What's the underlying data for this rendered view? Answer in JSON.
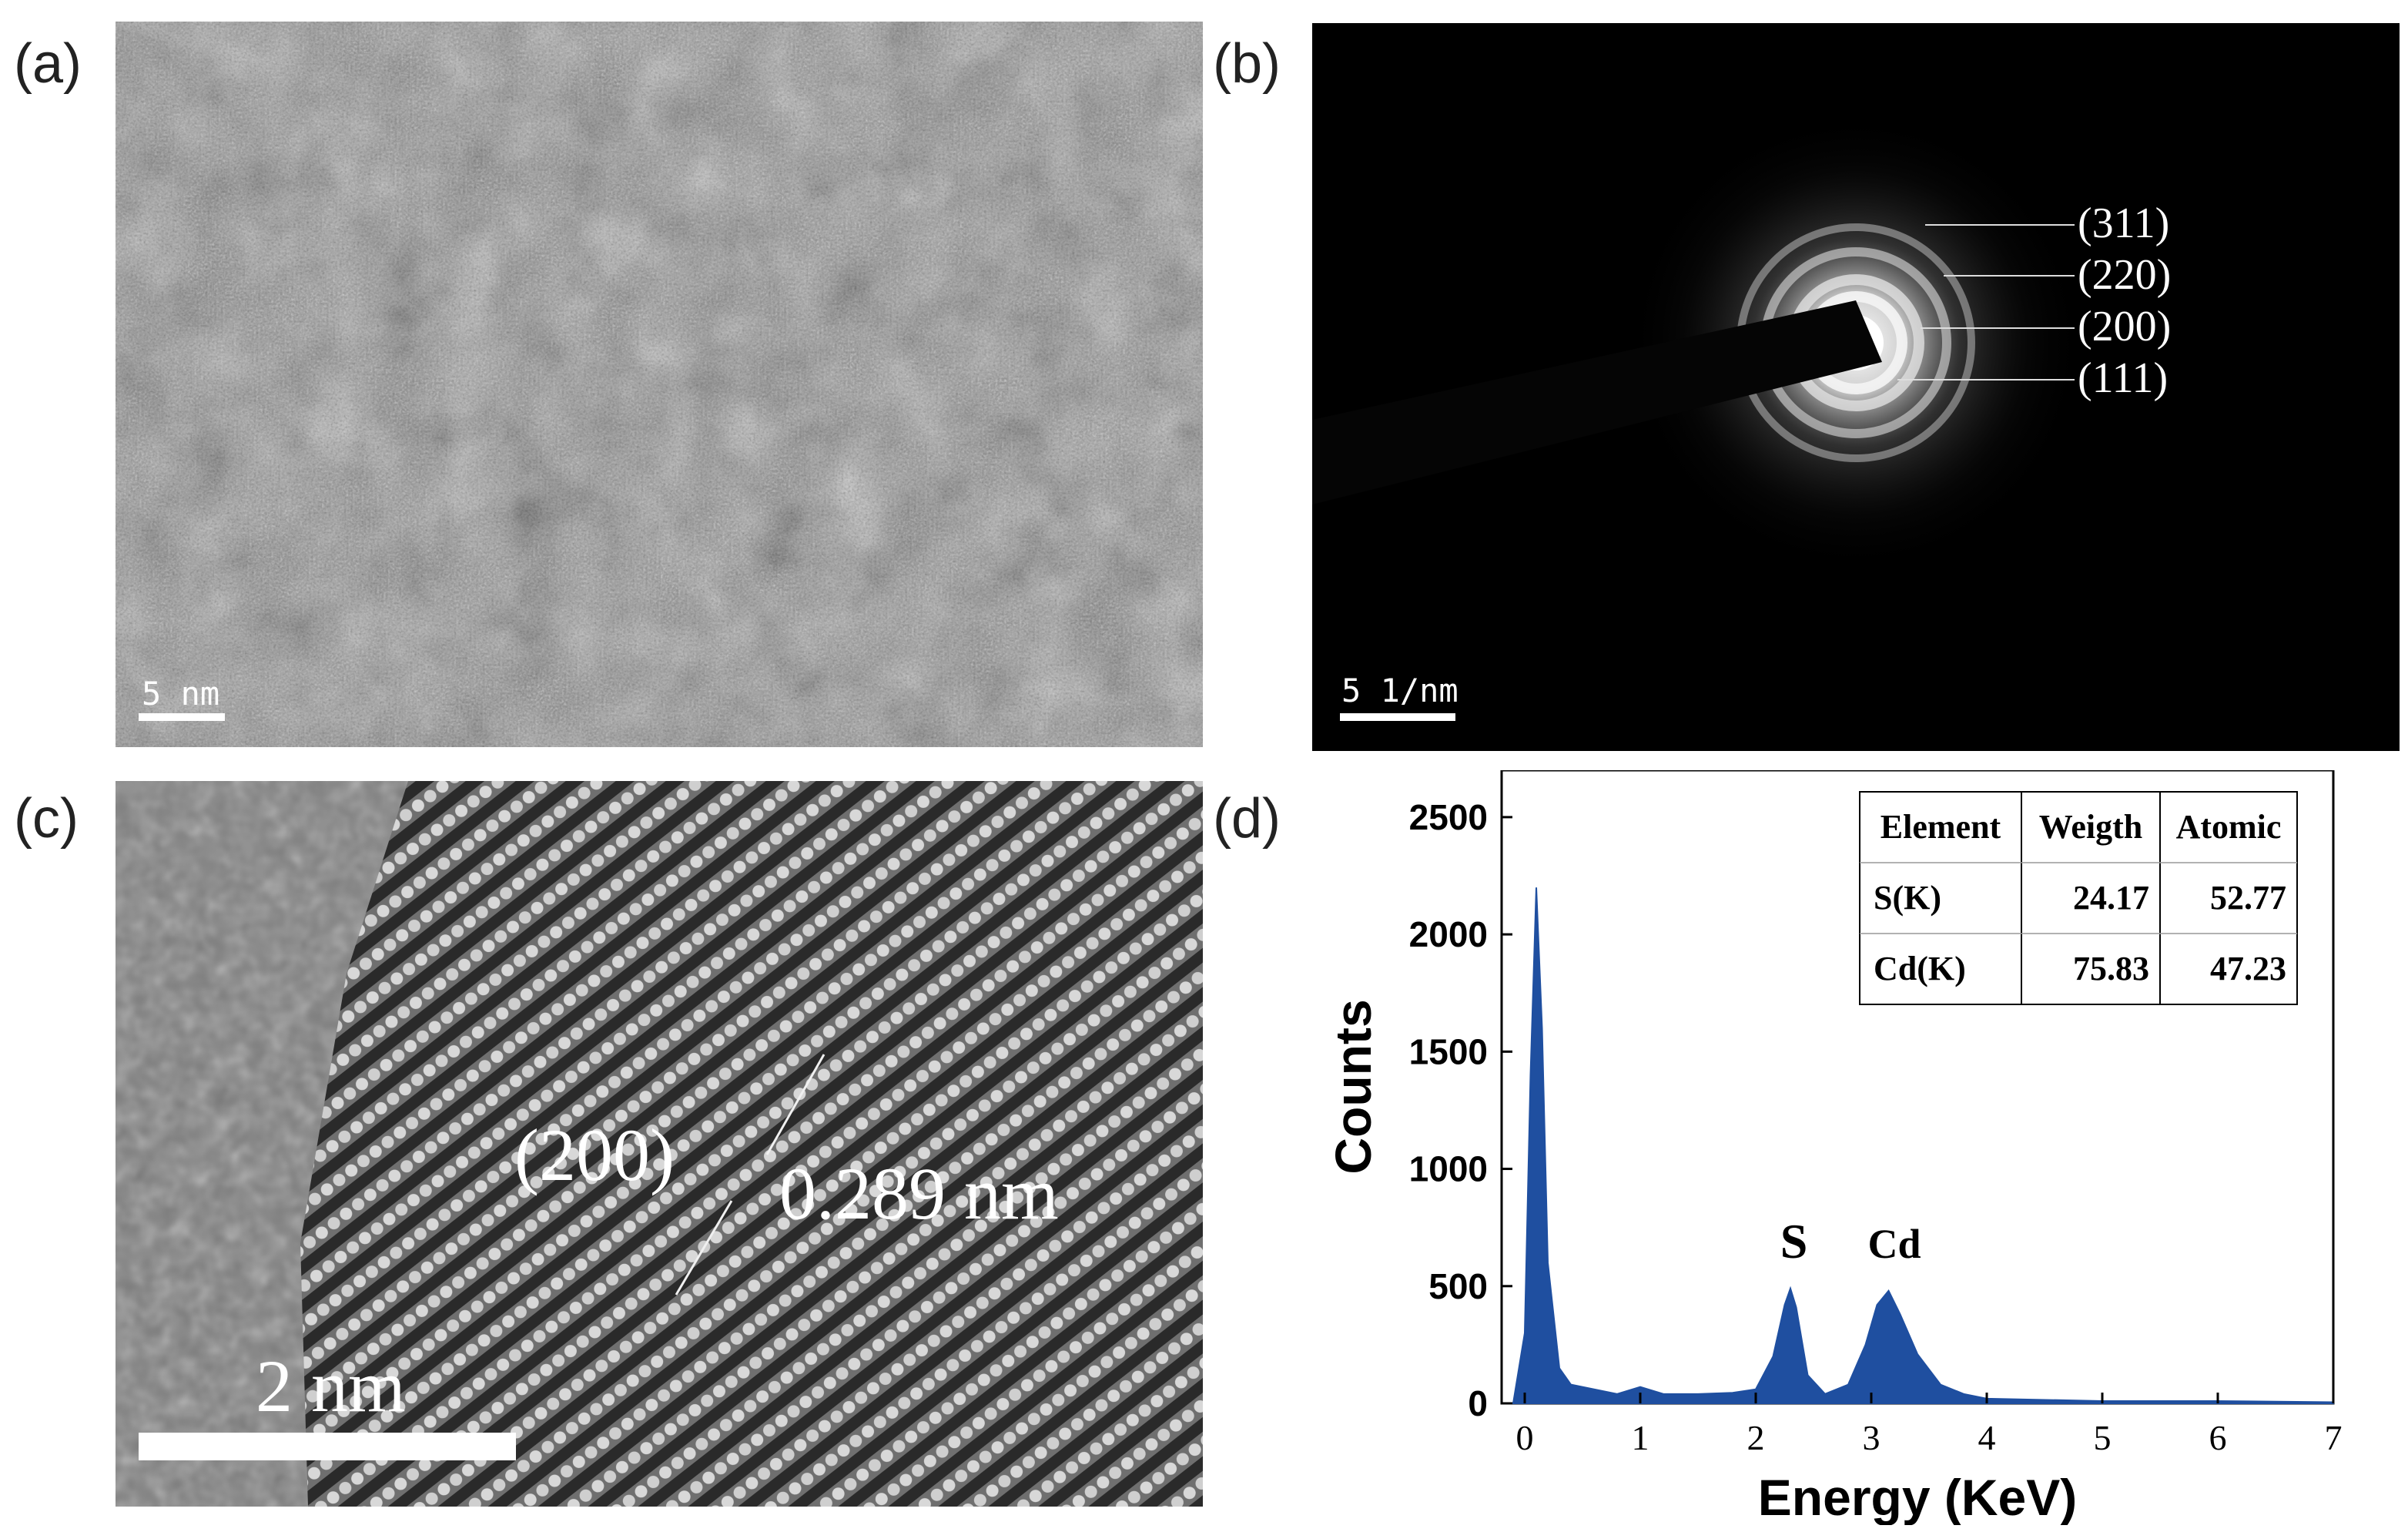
{
  "panels": {
    "a": {
      "letter": "(a)",
      "scale_bar": "5 nm"
    },
    "b": {
      "letter": "(b)",
      "scale_bar": "5 1/nm",
      "ring_labels": [
        "(311)",
        "(220)",
        "(200)",
        "(111)"
      ]
    },
    "c": {
      "letter": "(c)",
      "plane_label": "(200)",
      "spacing_label": "0.289 nm",
      "scale_bar": "2 nm"
    },
    "d": {
      "letter": "(d)"
    }
  },
  "chart_data": {
    "type": "area",
    "xlabel": "Energy (KeV)",
    "ylabel": "Counts",
    "xlim": [
      -0.2,
      7
    ],
    "ylim": [
      0,
      2700
    ],
    "xticks": [
      0,
      1,
      2,
      3,
      4,
      5,
      6,
      7
    ],
    "yticks": [
      0,
      500,
      1000,
      1500,
      2000,
      2500
    ],
    "color": "#1f4fa0",
    "x": [
      -0.1,
      0.0,
      0.05,
      0.1,
      0.15,
      0.2,
      0.3,
      0.4,
      0.6,
      0.8,
      1.0,
      1.2,
      1.5,
      1.8,
      2.0,
      2.15,
      2.25,
      2.3,
      2.35,
      2.45,
      2.6,
      2.8,
      2.95,
      3.05,
      3.15,
      3.25,
      3.4,
      3.6,
      3.8,
      4.0,
      5.0,
      6.0,
      7.0
    ],
    "y": [
      0,
      300,
      1400,
      2200,
      1600,
      600,
      150,
      80,
      60,
      40,
      70,
      40,
      40,
      45,
      60,
      200,
      420,
      490,
      410,
      120,
      40,
      80,
      250,
      420,
      480,
      380,
      210,
      80,
      40,
      20,
      10,
      10,
      5
    ],
    "annotations": [
      {
        "text": "S",
        "x": 2.33,
        "y": 620
      },
      {
        "text": "Cd",
        "x": 3.2,
        "y": 620
      }
    ],
    "table": {
      "headers": [
        "Element",
        "Weigth",
        "Atomic"
      ],
      "rows": [
        [
          "S(K)",
          "24.17",
          "52.77"
        ],
        [
          "Cd(K)",
          "75.83",
          "47.23"
        ]
      ]
    }
  }
}
